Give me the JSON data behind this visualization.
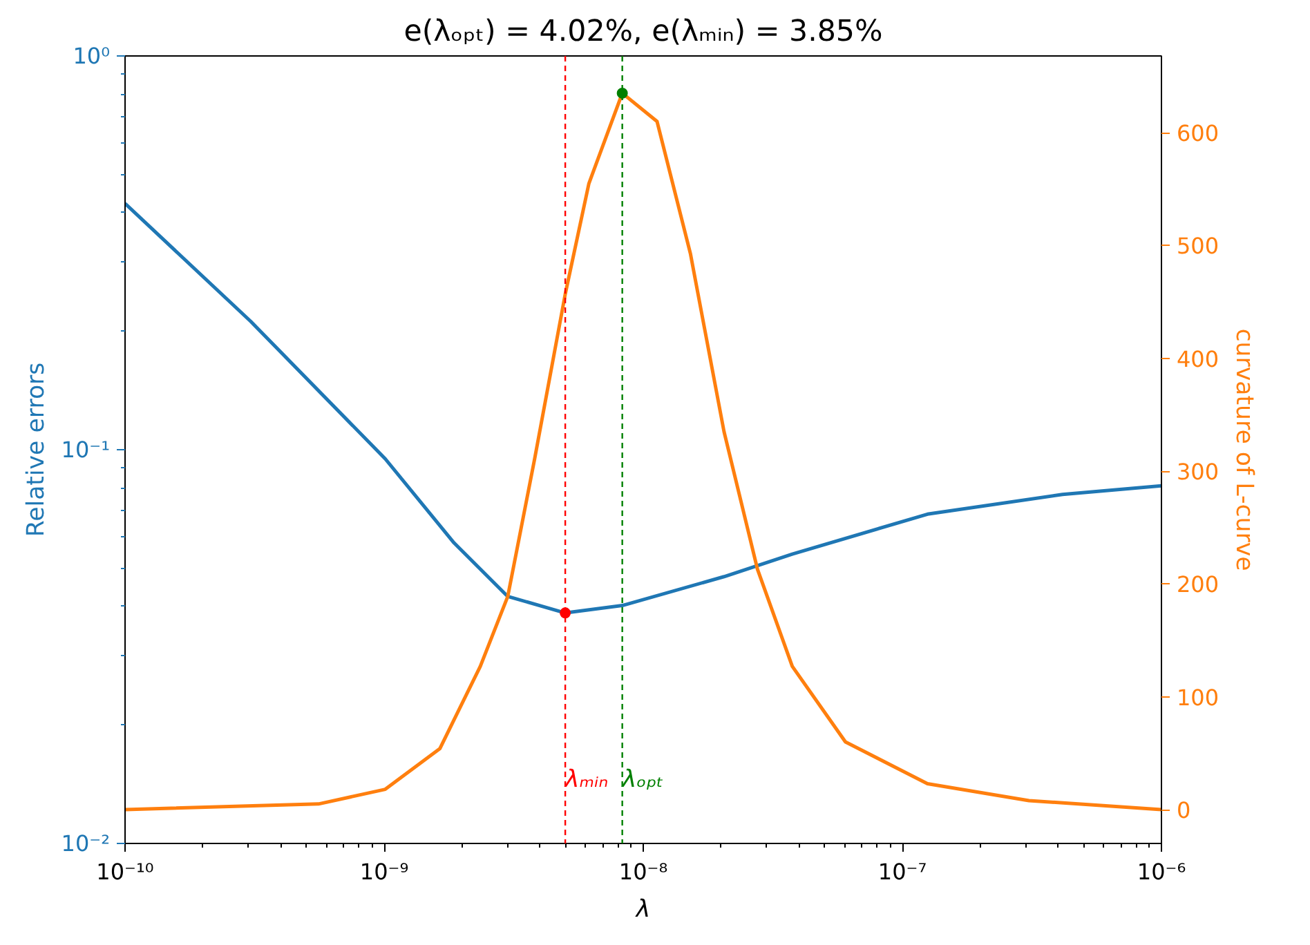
{
  "chart_data": {
    "type": "line",
    "title": "e(λₒₚₜ) = 4.02%, e(λₘᵢₙ) = 3.85%",
    "xlabel": "λ",
    "ylabel": "Relative errors",
    "y2label": "curvature of L-curve",
    "log": "xy",
    "grid": false,
    "line_style": "solid",
    "xlim": [
      1e-10,
      1e-06
    ],
    "xticks": [
      {
        "value": 1e-10,
        "label": "10⁻¹⁰"
      },
      {
        "value": 1e-09,
        "label": "10⁻⁹"
      },
      {
        "value": 1e-08,
        "label": "10⁻⁸"
      },
      {
        "value": 1e-07,
        "label": "10⁻⁷"
      },
      {
        "value": 1e-06,
        "label": "10⁻⁶"
      }
    ],
    "ylim": [
      0.01,
      1
    ],
    "yticks": [
      {
        "value": 0.01,
        "label": "10⁻²"
      },
      {
        "value": 0.1,
        "label": "10⁻¹"
      },
      {
        "value": 1,
        "label": "10⁰"
      }
    ],
    "y2lim": [
      -30,
      668
    ],
    "y2ticks": [
      0,
      100,
      200,
      300,
      400,
      500,
      600
    ],
    "series": [
      {
        "color": "#1f77b4",
        "x": [
          1e-10,
          3.05e-10,
          1.01e-09,
          1.86e-09,
          3e-09,
          5e-09,
          8.3e-09,
          2.05e-08,
          3.76e-08,
          1.25e-07,
          4.15e-07,
          1e-06
        ],
        "values": [
          0.422,
          0.212,
          0.0948,
          0.058,
          0.0424,
          0.0385,
          0.0402,
          0.0476,
          0.0543,
          0.0686,
          0.077,
          0.081
        ]
      },
      {
        "axis": "y2",
        "color": "#ff7f0e",
        "x": [
          1e-10,
          5.58e-10,
          1.01e-09,
          1.64e-09,
          2.35e-09,
          3e-09,
          3.81e-09,
          5e-09,
          6.17e-09,
          8.3e-09,
          1.13e-08,
          1.52e-08,
          2.05e-08,
          2.76e-08,
          3.76e-08,
          6.03e-08,
          1.25e-07,
          3.08e-07,
          1e-06
        ],
        "values": [
          0,
          5,
          18,
          54,
          127,
          189,
          311,
          457,
          555,
          635,
          610,
          493,
          335,
          213,
          127,
          60,
          23,
          8,
          0
        ]
      },
      {
        "type": "scatter",
        "marker": "circle",
        "color": "#ff0000",
        "x": [
          5e-09
        ],
        "values": [
          0.0385
        ]
      },
      {
        "type": "scatter",
        "marker": "circle",
        "axis": "y2",
        "color": "#008000",
        "x": [
          8.3e-09
        ],
        "values": [
          635
        ]
      }
    ],
    "ref_lines": [
      {
        "axis": "x",
        "value": 5e-09,
        "label": "λₘᵢₙ",
        "color": "#ff0000",
        "line_style": "dashed"
      },
      {
        "axis": "x",
        "value": 8.3e-09,
        "label": "λₒₚₜ",
        "color": "#008000",
        "line_style": "dashed"
      }
    ]
  }
}
